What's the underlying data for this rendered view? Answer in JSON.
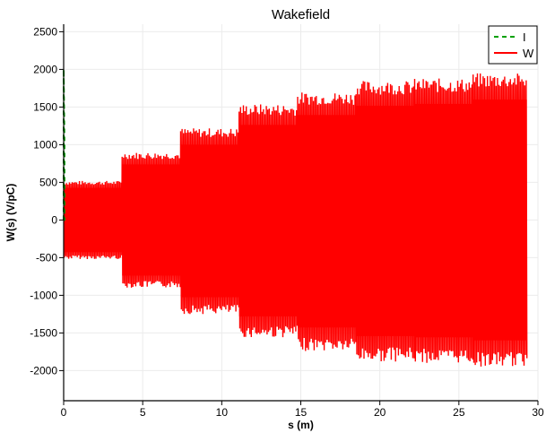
{
  "chart_data": {
    "type": "line",
    "title": "Wakefield",
    "xlabel": "s (m)",
    "ylabel": "W(s) (V/pC)",
    "xlim": [
      0,
      30
    ],
    "ylim": [
      -2400,
      2600
    ],
    "x_ticks": [
      0,
      5,
      10,
      15,
      20,
      25,
      30
    ],
    "y_ticks": [
      -2000,
      -1500,
      -1000,
      -500,
      0,
      500,
      1000,
      1500,
      2000,
      2500
    ],
    "grid": true,
    "legend_position": "top-right",
    "colors": {
      "I": "#00a000",
      "W": "#ff0000"
    },
    "series": [
      {
        "name": "I",
        "style": "dashed",
        "color": "#00a000",
        "x": [
          0,
          0,
          0.05,
          0.05,
          0.1
        ],
        "y": [
          0,
          2000,
          1000,
          0,
          0
        ]
      },
      {
        "name": "W",
        "style": "solid",
        "color": "#ff0000",
        "description_of_envelope": "rapidly oscillating wake potential; peak amplitude grows in steps",
        "segments": [
          {
            "x_start": 0.0,
            "x_end": 3.7,
            "upper": 520,
            "lower": -520
          },
          {
            "x_start": 3.7,
            "x_end": 7.4,
            "upper": 900,
            "lower": -900
          },
          {
            "x_start": 7.4,
            "x_end": 11.1,
            "upper": 1220,
            "lower": -1250
          },
          {
            "x_start": 11.1,
            "x_end": 14.8,
            "upper": 1540,
            "lower": -1560
          },
          {
            "x_start": 14.8,
            "x_end": 18.5,
            "upper": 1700,
            "lower": -1740
          },
          {
            "x_start": 18.5,
            "x_end": 22.2,
            "upper": 1850,
            "lower": -1880
          },
          {
            "x_start": 22.2,
            "x_end": 25.9,
            "upper": 1880,
            "lower": -1900
          },
          {
            "x_start": 25.9,
            "x_end": 29.3,
            "upper": 1950,
            "lower": -1950
          }
        ],
        "peak_max": 2000,
        "peak_min": -2000,
        "x_end": 29.3
      }
    ]
  }
}
